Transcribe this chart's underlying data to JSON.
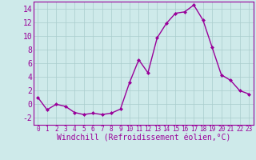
{
  "x": [
    0,
    1,
    2,
    3,
    4,
    5,
    6,
    7,
    8,
    9,
    10,
    11,
    12,
    13,
    14,
    15,
    16,
    17,
    18,
    19,
    20,
    21,
    22,
    23
  ],
  "y": [
    1.0,
    -0.8,
    0.0,
    -0.3,
    -1.2,
    -1.5,
    -1.3,
    -1.5,
    -1.3,
    -0.7,
    3.2,
    6.5,
    4.6,
    9.7,
    11.8,
    13.3,
    13.5,
    14.5,
    12.3,
    8.3,
    4.3,
    3.5,
    2.0,
    1.5
  ],
  "xlabel": "Windchill (Refroidissement éolien,°C)",
  "ylim": [
    -3,
    15
  ],
  "xlim": [
    -0.5,
    23.5
  ],
  "yticks": [
    -2,
    0,
    2,
    4,
    6,
    8,
    10,
    12,
    14
  ],
  "xticks": [
    0,
    1,
    2,
    3,
    4,
    5,
    6,
    7,
    8,
    9,
    10,
    11,
    12,
    13,
    14,
    15,
    16,
    17,
    18,
    19,
    20,
    21,
    22,
    23
  ],
  "line_color": "#990099",
  "marker": "D",
  "marker_size": 2,
  "bg_color": "#ceeaea",
  "grid_color": "#aacccc",
  "tick_color": "#990099",
  "xlabel_color": "#990099",
  "xlabel_fontsize": 7,
  "ytick_fontsize": 7,
  "xtick_fontsize": 5.5
}
